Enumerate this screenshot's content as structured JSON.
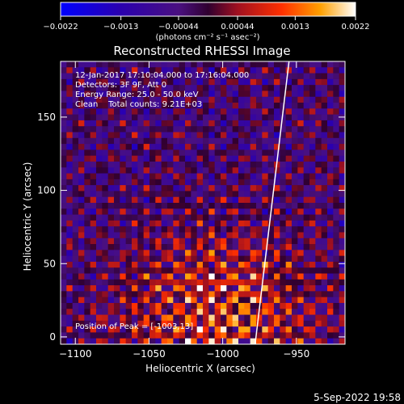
{
  "chart_data": {
    "type": "heatmap",
    "title": "Reconstructed RHESSI Image",
    "xlabel": "Heliocentric X (arcsec)",
    "ylabel": "Heliocentric Y (arcsec)",
    "xlim": [
      -1110,
      -917
    ],
    "ylim": [
      -5,
      188
    ],
    "x_ticks": [
      -1100,
      -1050,
      -1000,
      -950
    ],
    "x_tick_labels": [
      "−1100",
      "−1050",
      "−1000",
      "−950"
    ],
    "y_ticks": [
      0,
      50,
      100,
      150
    ],
    "y_tick_labels": [
      "0",
      "50",
      "100",
      "150"
    ],
    "colorbar": {
      "range": [
        -0.0022,
        0.0022
      ],
      "ticks": [
        -0.0022,
        -0.0013,
        -0.00044,
        0.00044,
        0.0013,
        0.0022
      ],
      "tick_labels": [
        "−0.0022",
        "−0.0013",
        "−0.00044",
        "0.00044",
        "0.0013",
        "0.0022"
      ],
      "unit_label": "(photons cm⁻² s⁻¹ asec⁻²)"
    },
    "annotations": {
      "time": "12-Jan-2017 17:10:04.000 to 17:16:04.000",
      "detectors": "Detectors: 3F 9F, Att 0",
      "energy": "Energy Range: 25.0 - 50.0 keV",
      "clean": "Clean    Total counts: 9.21E+03",
      "peak": "Position of Peak = [-1003,13]"
    },
    "peak_position": [
      -1003,
      13
    ],
    "limb_line": [
      [
        -978,
        -5
      ],
      [
        -955,
        188
      ]
    ],
    "colors": {
      "background": "#000000",
      "text": "#ffffff",
      "limb": "#ffffff"
    }
  },
  "footer": {
    "date": "5-Sep-2022 19:58"
  }
}
